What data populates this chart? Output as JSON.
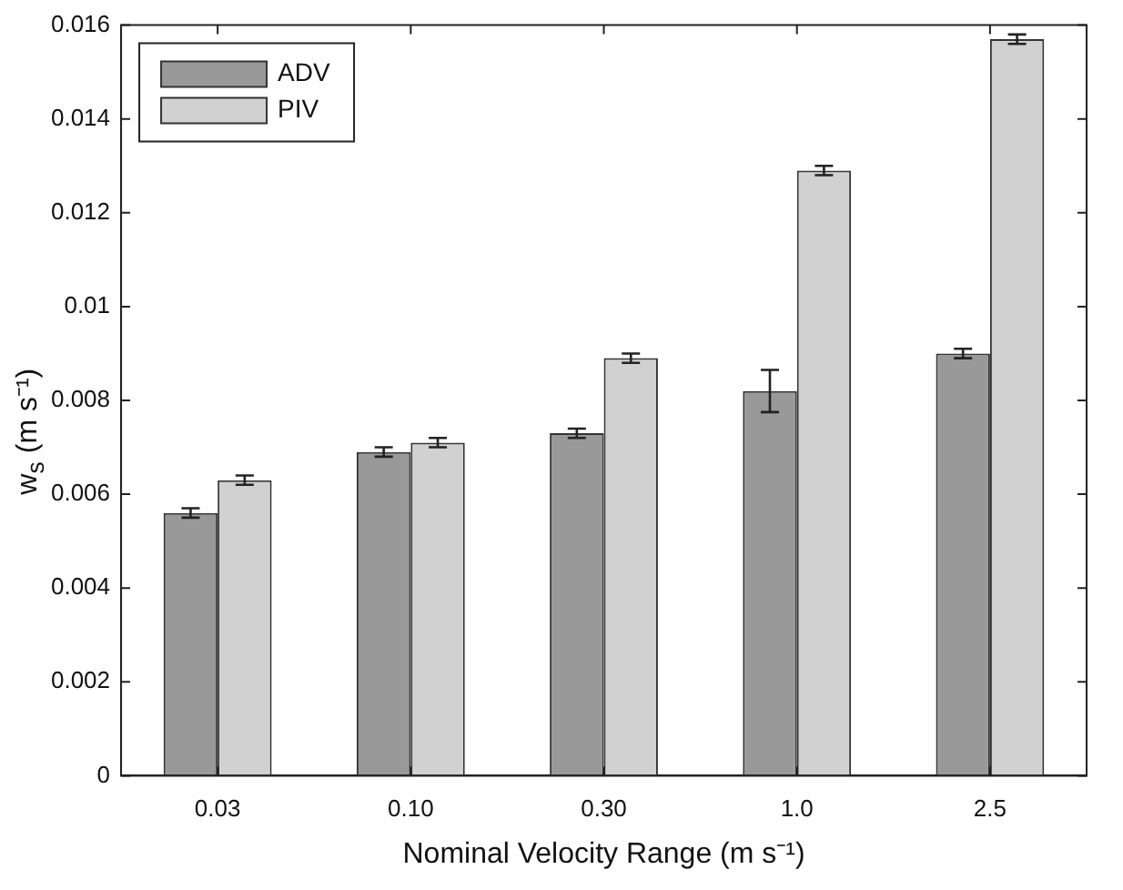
{
  "chart_data": {
    "type": "bar",
    "xlabel": "Nominal Velocity Range (m s⁻¹)",
    "ylabel": "w$_{s}$ (m s⁻¹)",
    "categories": [
      "0.03",
      "0.10",
      "0.30",
      "1.0",
      "2.5"
    ],
    "series": [
      {
        "name": "ADV",
        "color": "#999999",
        "values": [
          0.0056,
          0.0069,
          0.0073,
          0.0082,
          0.009
        ],
        "errors": [
          0.0001,
          0.0001,
          0.0001,
          0.00045,
          0.0001
        ]
      },
      {
        "name": "PIV",
        "color": "#d0d1d0",
        "values": [
          0.0063,
          0.0071,
          0.0089,
          0.0129,
          0.0157
        ],
        "errors": [
          0.0001,
          0.0001,
          0.0001,
          0.0001,
          0.0001
        ]
      }
    ],
    "ylim": [
      0,
      0.016
    ],
    "yticks": [
      0,
      0.002,
      0.004,
      0.006,
      0.008,
      "0.01",
      0.012,
      0.014,
      0.016
    ],
    "grid": false,
    "legend": "top left"
  }
}
